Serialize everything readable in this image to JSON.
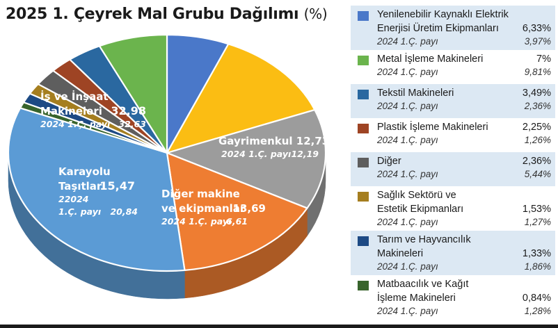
{
  "title": "2025 1. Çeyrek Mal Grubu Dağılımı",
  "title_unit": "(%)",
  "prev_label": "2024 1.Ç. payı",
  "chart_data": {
    "type": "pie",
    "title": "2025 1. Çeyrek Mal Grubu Dağılımı (%)",
    "slices": [
      {
        "key": "yenilenebilir",
        "label": "Yenilenebilir Kaynaklı Elektrik Enerjisi Üretim Ekipmanları",
        "value": 6.33,
        "prev": 3.97,
        "value_text": "6,33%",
        "prev_text": "3,97%",
        "color": "#4a78c9"
      },
      {
        "key": "gayrimenkul",
        "label": "Gayrimenkul",
        "value": 12.73,
        "prev": 12.19,
        "value_text": "12,73",
        "prev_text": "12,19",
        "color": "#fbbd13"
      },
      {
        "key": "diger-makine",
        "label": "Diğer makine ve ekipmanlar",
        "value": 13.69,
        "prev": 6.61,
        "value_text": "13,69",
        "prev_text": "6,61",
        "color": "#9c9c9c"
      },
      {
        "key": "karayolu",
        "label": "Karayolu Taşıtları",
        "value": 15.47,
        "prev": 20.84,
        "value_text": "15,47",
        "prev_text": "20,84",
        "color": "#ee7d32"
      },
      {
        "key": "insaat",
        "label": "İş ve İnşaat Makineleri",
        "value": 32.98,
        "prev": 32.63,
        "value_text": "32,98",
        "prev_text": "32,63",
        "color": "#5b9bd5"
      },
      {
        "key": "matbaa",
        "label": "Matbaacılık ve Kağıt İşleme Makineleri",
        "value": 0.84,
        "prev": 1.28,
        "value_text": "0,84%",
        "prev_text": "1,28%",
        "color": "#38642c"
      },
      {
        "key": "tarim",
        "label": "Tarım ve Hayvancılık Makineleri",
        "value": 1.33,
        "prev": 1.86,
        "value_text": "1,33%",
        "prev_text": "1,86%",
        "color": "#1d4a84"
      },
      {
        "key": "saglik",
        "label": "Sağlık Sektörü ve Estetik Ekipmanları",
        "value": 1.53,
        "prev": 1.27,
        "value_text": "1,53%",
        "prev_text": "1,27%",
        "color": "#a57e1f"
      },
      {
        "key": "diger",
        "label": "Diğer",
        "value": 2.36,
        "prev": 5.44,
        "value_text": "2,36%",
        "prev_text": "5,44%",
        "color": "#5e5e5e"
      },
      {
        "key": "plastik",
        "label": "Plastik İşleme Makineleri",
        "value": 2.25,
        "prev": 1.26,
        "value_text": "2,25%",
        "prev_text": "1,26%",
        "color": "#9e4424"
      },
      {
        "key": "tekstil",
        "label": "Tekstil Makineleri",
        "value": 3.49,
        "prev": 2.36,
        "value_text": "3,49%",
        "prev_text": "2,36%",
        "color": "#2a68a0"
      },
      {
        "key": "metal",
        "label": "Metal İşleme Makineleri",
        "value": 7,
        "prev": 9.81,
        "value_text": "7%",
        "prev_text": "9,81%",
        "color": "#6bb44d"
      }
    ]
  },
  "pie_labels": {
    "insaat": {
      "line1": "İş ve İnşaat",
      "line2": "Makineleri",
      "value": "32,98",
      "prev": "32,63"
    },
    "gayrimenkul": {
      "line1": "Gayrimenkul 12,73",
      "prev": "12,19"
    },
    "karayolu": {
      "line1": "Karayolu",
      "line2": "Taşıtları",
      "value": "15,47",
      "prev_line1": "22024",
      "prev_line2": "1.Ç. payı",
      "prev": "20,84"
    },
    "diger_makine": {
      "line1": "Diğer makine",
      "line2": "ve ekipmanlar",
      "value": "13,69",
      "prev": "6,61"
    }
  },
  "legend": [
    {
      "key": "yenilenebilir",
      "name_lines": [
        "Yenilenebilir Kaynaklı Elektrik",
        "Enerjisi Üretim Ekipmanları"
      ],
      "value": "6,33%",
      "prev": "3,97%",
      "color": "#4a78c9",
      "shade": true
    },
    {
      "key": "metal",
      "name_lines": [
        "Metal İşleme Makineleri"
      ],
      "value": "7%",
      "prev": "9,81%",
      "color": "#6bb44d",
      "shade": false
    },
    {
      "key": "tekstil",
      "name_lines": [
        "Tekstil Makineleri"
      ],
      "value": "3,49%",
      "prev": "2,36%",
      "color": "#2a68a0",
      "shade": true
    },
    {
      "key": "plastik",
      "name_lines": [
        "Plastik İşleme Makineleri"
      ],
      "value": "2,25%",
      "prev": "1,26%",
      "color": "#9e4424",
      "shade": false
    },
    {
      "key": "diger",
      "name_lines": [
        "Diğer"
      ],
      "value": "2,36%",
      "prev": "5,44%",
      "color": "#5e5e5e",
      "shade": true
    },
    {
      "key": "saglik",
      "name_lines": [
        "Sağlık Sektörü ve",
        "Estetik Ekipmanları"
      ],
      "value": "1,53%",
      "prev": "1,27%",
      "color": "#a57e1f",
      "shade": false
    },
    {
      "key": "tarim",
      "name_lines": [
        "Tarım ve Hayvancılık",
        "Makineleri"
      ],
      "value": "1,33%",
      "prev": "1,86%",
      "color": "#1d4a84",
      "shade": true
    },
    {
      "key": "matbaa",
      "name_lines": [
        "Matbaacılık ve Kağıt",
        "İşleme Makineleri"
      ],
      "value": "0,84%",
      "prev": "1,28%",
      "color": "#38642c",
      "shade": false
    }
  ]
}
